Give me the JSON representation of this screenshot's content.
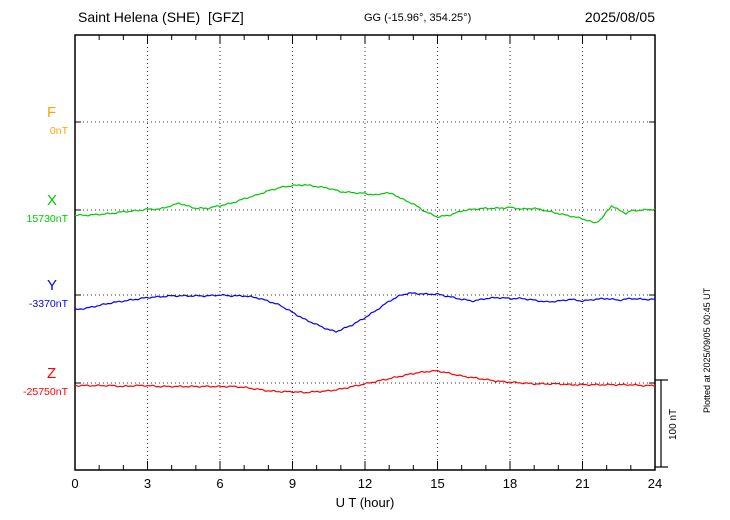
{
  "header": {
    "station_title": "Saint Helena (SHE)  [GFZ]",
    "gg_coords": "GG (-15.96°, 354.25°)",
    "date": "2025/08/05"
  },
  "footer": {
    "plotted_at": "Plotted at 2025/09/05 00:45 UT"
  },
  "chart_data": {
    "type": "line",
    "title": "Saint Helena (SHE) [GFZ] 2025/08/05",
    "xlabel": "U T (hour)",
    "x_range": [
      0,
      24
    ],
    "x_ticks": [
      0,
      3,
      6,
      9,
      12,
      15,
      18,
      21,
      24
    ],
    "x_minor_tick_step": 1,
    "grid": "dotted vertical lines at major ticks; dotted horizontal line at each series baseline",
    "legend_position": "left-of-plot component labels",
    "scale_bar": {
      "label": "100 nT",
      "nT": 100
    },
    "points_format": "[UT hour, offset in nT from series baseline]",
    "series": [
      {
        "name": "F",
        "color": "#FFA500",
        "baseline_label": "0nT",
        "baseline_value_nT": 0,
        "points": []
      },
      {
        "name": "X",
        "color": "#00C800",
        "baseline_label": "15730nT",
        "baseline_value_nT": 15730,
        "points": [
          [
            0,
            -6
          ],
          [
            0.5,
            -6
          ],
          [
            1,
            -5
          ],
          [
            1.5,
            -4
          ],
          [
            2,
            -2
          ],
          [
            2.5,
            -1
          ],
          [
            3,
            1
          ],
          [
            3.5,
            1
          ],
          [
            4,
            5
          ],
          [
            4.3,
            8
          ],
          [
            4.6,
            5
          ],
          [
            5,
            2
          ],
          [
            5.5,
            2
          ],
          [
            6,
            5
          ],
          [
            6.5,
            8
          ],
          [
            7,
            13
          ],
          [
            7.5,
            17
          ],
          [
            8,
            22
          ],
          [
            8.5,
            26
          ],
          [
            9,
            28
          ],
          [
            9.5,
            29
          ],
          [
            10,
            27
          ],
          [
            10.5,
            25
          ],
          [
            11,
            21
          ],
          [
            11.5,
            20
          ],
          [
            12,
            19
          ],
          [
            12.5,
            17
          ],
          [
            12.8,
            20
          ],
          [
            13.2,
            18
          ],
          [
            13.5,
            13
          ],
          [
            14,
            7
          ],
          [
            14.5,
            -2
          ],
          [
            15,
            -8
          ],
          [
            15.5,
            -6
          ],
          [
            16,
            -1
          ],
          [
            16.5,
            1
          ],
          [
            17,
            2
          ],
          [
            17.5,
            2
          ],
          [
            18,
            3
          ],
          [
            18.5,
            1
          ],
          [
            19,
            2
          ],
          [
            19.5,
            -1
          ],
          [
            20,
            -4
          ],
          [
            20.5,
            -7
          ],
          [
            21,
            -10
          ],
          [
            21.5,
            -15
          ],
          [
            21.8,
            -10
          ],
          [
            22,
            -2
          ],
          [
            22.2,
            5
          ],
          [
            22.5,
            0
          ],
          [
            22.8,
            -4
          ],
          [
            23,
            -1
          ],
          [
            23.5,
            0
          ],
          [
            24,
            1
          ]
        ]
      },
      {
        "name": "Y",
        "color": "#0000FF",
        "baseline_label": "-3370nT",
        "baseline_value_nT": -3370,
        "points": [
          [
            0,
            -17
          ],
          [
            0.5,
            -15
          ],
          [
            1,
            -12
          ],
          [
            1.5,
            -9
          ],
          [
            2,
            -7
          ],
          [
            2.5,
            -5
          ],
          [
            3,
            -3
          ],
          [
            3.5,
            -2
          ],
          [
            4,
            -1
          ],
          [
            4.5,
            -1
          ],
          [
            5,
            -1
          ],
          [
            5.5,
            -1
          ],
          [
            6,
            0
          ],
          [
            6.5,
            -1
          ],
          [
            7,
            -1
          ],
          [
            7.5,
            -3
          ],
          [
            8,
            -7
          ],
          [
            8.5,
            -12
          ],
          [
            9,
            -20
          ],
          [
            9.5,
            -28
          ],
          [
            10,
            -34
          ],
          [
            10.5,
            -40
          ],
          [
            10.8,
            -42
          ],
          [
            11,
            -40
          ],
          [
            11.5,
            -34
          ],
          [
            12,
            -26
          ],
          [
            12.5,
            -17
          ],
          [
            13,
            -7
          ],
          [
            13.5,
            0
          ],
          [
            13.8,
            2
          ],
          [
            14,
            2
          ],
          [
            14.5,
            1
          ],
          [
            15,
            1
          ],
          [
            15.5,
            -2
          ],
          [
            16,
            -5
          ],
          [
            16.5,
            -7
          ],
          [
            17,
            -4
          ],
          [
            17.5,
            -3
          ],
          [
            18,
            -4
          ],
          [
            18.5,
            -4
          ],
          [
            19,
            -6
          ],
          [
            19.5,
            -8
          ],
          [
            20,
            -7
          ],
          [
            20.5,
            -5
          ],
          [
            21,
            -7
          ],
          [
            21.5,
            -5
          ],
          [
            22,
            -4
          ],
          [
            22.5,
            -6
          ],
          [
            23,
            -4
          ],
          [
            23.5,
            -5
          ],
          [
            24,
            -5
          ]
        ]
      },
      {
        "name": "Z",
        "color": "#FF0000",
        "baseline_label": "-25750nT",
        "baseline_value_nT": -25750,
        "points": [
          [
            0,
            -3
          ],
          [
            0.5,
            -3
          ],
          [
            1,
            -3
          ],
          [
            1.5,
            -3
          ],
          [
            2,
            -4
          ],
          [
            2.5,
            -3
          ],
          [
            3,
            -3
          ],
          [
            3.5,
            -4
          ],
          [
            4,
            -4
          ],
          [
            4.5,
            -4
          ],
          [
            5,
            -4
          ],
          [
            5.5,
            -4
          ],
          [
            6,
            -4
          ],
          [
            6.5,
            -4
          ],
          [
            7,
            -5
          ],
          [
            7.5,
            -7
          ],
          [
            8,
            -9
          ],
          [
            8.5,
            -10
          ],
          [
            9,
            -10
          ],
          [
            9.5,
            -11
          ],
          [
            10,
            -10
          ],
          [
            10.5,
            -9
          ],
          [
            11,
            -7
          ],
          [
            11.5,
            -4
          ],
          [
            12,
            -1
          ],
          [
            12.5,
            2
          ],
          [
            13,
            5
          ],
          [
            13.5,
            8
          ],
          [
            14,
            11
          ],
          [
            14.5,
            13
          ],
          [
            15,
            14
          ],
          [
            15.5,
            11
          ],
          [
            16,
            8
          ],
          [
            16.5,
            6
          ],
          [
            17,
            4
          ],
          [
            17.5,
            2
          ],
          [
            18,
            1
          ],
          [
            18.5,
            0
          ],
          [
            19,
            -1
          ],
          [
            19.5,
            -1
          ],
          [
            20,
            -1
          ],
          [
            20.5,
            -2
          ],
          [
            21,
            -2
          ],
          [
            21.5,
            -2
          ],
          [
            22,
            -2
          ],
          [
            22.5,
            -2
          ],
          [
            23,
            -2
          ],
          [
            23.5,
            -3
          ],
          [
            24,
            -3
          ]
        ]
      }
    ]
  }
}
